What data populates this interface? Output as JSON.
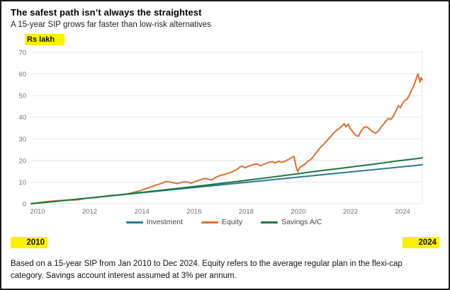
{
  "header": {
    "title": "The safest path isn’t always the straightest",
    "subtitle": "A 15-year SIP grows far faster than low-risk alternatives"
  },
  "unit_label": "Rs lakh",
  "period": {
    "start": "2010",
    "end": "2024"
  },
  "footnote": "Based on a 15-year SIP from Jan 2010 to Dec 2024. Equity refers to the average regular plan in the flexi-cap category. Savings account interest assumed at 3% per annum.",
  "colors": {
    "highlight": "#fbf000",
    "grid": "#e4e4e6",
    "tick": "#6f6f6f",
    "investment": "#2d7796",
    "equity": "#e06e30",
    "savings": "#17793f"
  },
  "chart_data": {
    "type": "line",
    "title": "The safest path isn’t always the straightest",
    "subtitle": "A 15-year SIP grows far faster than low-risk alternatives",
    "ylabel": "Rs lakh",
    "xlabel": "",
    "ylim": [
      0,
      70
    ],
    "xlim": [
      2010,
      2025
    ],
    "yticks": [
      0,
      10,
      20,
      30,
      40,
      50,
      60,
      70
    ],
    "xticks": [
      2010,
      2012,
      2014,
      2016,
      2018,
      2020,
      2022,
      2024
    ],
    "grid": true,
    "legend_position": "bottom",
    "series": [
      {
        "name": "Investment",
        "color": "#2d7796",
        "points": [
          [
            2010,
            0
          ],
          [
            2025,
            18
          ]
        ]
      },
      {
        "name": "Equity",
        "color": "#e06e30",
        "points": [
          [
            2010.0,
            0.1
          ],
          [
            2010.17,
            0.3
          ],
          [
            2010.33,
            0.6
          ],
          [
            2010.5,
            0.85
          ],
          [
            2010.67,
            1.05
          ],
          [
            2010.83,
            1.25
          ],
          [
            2011.0,
            1.45
          ],
          [
            2011.17,
            1.5
          ],
          [
            2011.33,
            1.65
          ],
          [
            2011.5,
            1.7
          ],
          [
            2011.67,
            1.75
          ],
          [
            2011.83,
            1.85
          ],
          [
            2012.0,
            2.3
          ],
          [
            2012.17,
            2.6
          ],
          [
            2012.33,
            2.75
          ],
          [
            2012.5,
            2.9
          ],
          [
            2012.67,
            3.2
          ],
          [
            2012.83,
            3.45
          ],
          [
            2013.0,
            3.8
          ],
          [
            2013.17,
            3.95
          ],
          [
            2013.33,
            4.0
          ],
          [
            2013.5,
            4.1
          ],
          [
            2013.67,
            4.5
          ],
          [
            2013.83,
            4.9
          ],
          [
            2014.0,
            5.5
          ],
          [
            2014.17,
            6.0
          ],
          [
            2014.33,
            6.7
          ],
          [
            2014.5,
            7.4
          ],
          [
            2014.67,
            8.1
          ],
          [
            2014.83,
            8.8
          ],
          [
            2015.0,
            9.4
          ],
          [
            2015.1,
            10.0
          ],
          [
            2015.2,
            10.2
          ],
          [
            2015.35,
            9.9
          ],
          [
            2015.5,
            9.6
          ],
          [
            2015.6,
            9.3
          ],
          [
            2015.75,
            9.8
          ],
          [
            2015.9,
            10.1
          ],
          [
            2016.0,
            10.0
          ],
          [
            2016.15,
            9.5
          ],
          [
            2016.3,
            10.3
          ],
          [
            2016.45,
            10.9
          ],
          [
            2016.6,
            11.5
          ],
          [
            2016.7,
            11.6
          ],
          [
            2016.85,
            11.1
          ],
          [
            2016.95,
            11.0
          ],
          [
            2017.0,
            11.7
          ],
          [
            2017.15,
            12.6
          ],
          [
            2017.3,
            13.2
          ],
          [
            2017.45,
            13.7
          ],
          [
            2017.6,
            14.3
          ],
          [
            2017.75,
            15.0
          ],
          [
            2017.9,
            15.9
          ],
          [
            2018.0,
            16.9
          ],
          [
            2018.08,
            17.4
          ],
          [
            2018.2,
            16.6
          ],
          [
            2018.33,
            17.3
          ],
          [
            2018.45,
            17.8
          ],
          [
            2018.55,
            18.2
          ],
          [
            2018.67,
            18.4
          ],
          [
            2018.8,
            17.5
          ],
          [
            2018.9,
            18.2
          ],
          [
            2019.0,
            18.6
          ],
          [
            2019.12,
            19.2
          ],
          [
            2019.25,
            19.4
          ],
          [
            2019.37,
            18.9
          ],
          [
            2019.5,
            19.6
          ],
          [
            2019.62,
            19.1
          ],
          [
            2019.75,
            19.8
          ],
          [
            2019.87,
            20.5
          ],
          [
            2020.0,
            21.5
          ],
          [
            2020.08,
            21.9
          ],
          [
            2020.16,
            17.0
          ],
          [
            2020.22,
            14.8
          ],
          [
            2020.3,
            16.8
          ],
          [
            2020.4,
            17.6
          ],
          [
            2020.5,
            18.3
          ],
          [
            2020.6,
            19.6
          ],
          [
            2020.7,
            20.3
          ],
          [
            2020.8,
            21.5
          ],
          [
            2020.9,
            23.2
          ],
          [
            2021.0,
            24.6
          ],
          [
            2021.1,
            26.2
          ],
          [
            2021.2,
            27.3
          ],
          [
            2021.3,
            28.6
          ],
          [
            2021.4,
            30.0
          ],
          [
            2021.5,
            31.2
          ],
          [
            2021.6,
            32.8
          ],
          [
            2021.7,
            33.8
          ],
          [
            2021.8,
            34.6
          ],
          [
            2021.9,
            35.8
          ],
          [
            2022.0,
            37.0
          ],
          [
            2022.07,
            35.6
          ],
          [
            2022.15,
            36.8
          ],
          [
            2022.25,
            34.5
          ],
          [
            2022.35,
            33.0
          ],
          [
            2022.45,
            31.5
          ],
          [
            2022.55,
            31.2
          ],
          [
            2022.65,
            33.6
          ],
          [
            2022.75,
            35.2
          ],
          [
            2022.85,
            35.6
          ],
          [
            2022.95,
            34.8
          ],
          [
            2023.0,
            34.2
          ],
          [
            2023.1,
            33.2
          ],
          [
            2023.2,
            32.6
          ],
          [
            2023.3,
            33.4
          ],
          [
            2023.4,
            35.2
          ],
          [
            2023.5,
            36.6
          ],
          [
            2023.6,
            38.2
          ],
          [
            2023.7,
            39.4
          ],
          [
            2023.8,
            39.0
          ],
          [
            2023.9,
            40.8
          ],
          [
            2024.0,
            43.2
          ],
          [
            2024.08,
            45.3
          ],
          [
            2024.16,
            44.4
          ],
          [
            2024.25,
            46.6
          ],
          [
            2024.33,
            47.8
          ],
          [
            2024.42,
            48.4
          ],
          [
            2024.5,
            50.2
          ],
          [
            2024.58,
            52.4
          ],
          [
            2024.65,
            54.0
          ],
          [
            2024.72,
            56.2
          ],
          [
            2024.78,
            58.4
          ],
          [
            2024.83,
            60.0
          ],
          [
            2024.87,
            58.2
          ],
          [
            2024.91,
            56.2
          ],
          [
            2024.95,
            58.3
          ],
          [
            2025.0,
            57.2
          ]
        ]
      },
      {
        "name": "Savings A/C",
        "color": "#17793f",
        "points": [
          [
            2010,
            0
          ],
          [
            2011,
            1.15
          ],
          [
            2012,
            2.35
          ],
          [
            2013,
            3.6
          ],
          [
            2014,
            4.9
          ],
          [
            2015,
            6.25
          ],
          [
            2016,
            7.6
          ],
          [
            2017,
            9.0
          ],
          [
            2018,
            10.45
          ],
          [
            2019,
            11.95
          ],
          [
            2020,
            13.5
          ],
          [
            2021,
            15.1
          ],
          [
            2022,
            16.55
          ],
          [
            2023,
            18.1
          ],
          [
            2024,
            19.7
          ],
          [
            2025,
            21.2
          ]
        ]
      }
    ]
  }
}
